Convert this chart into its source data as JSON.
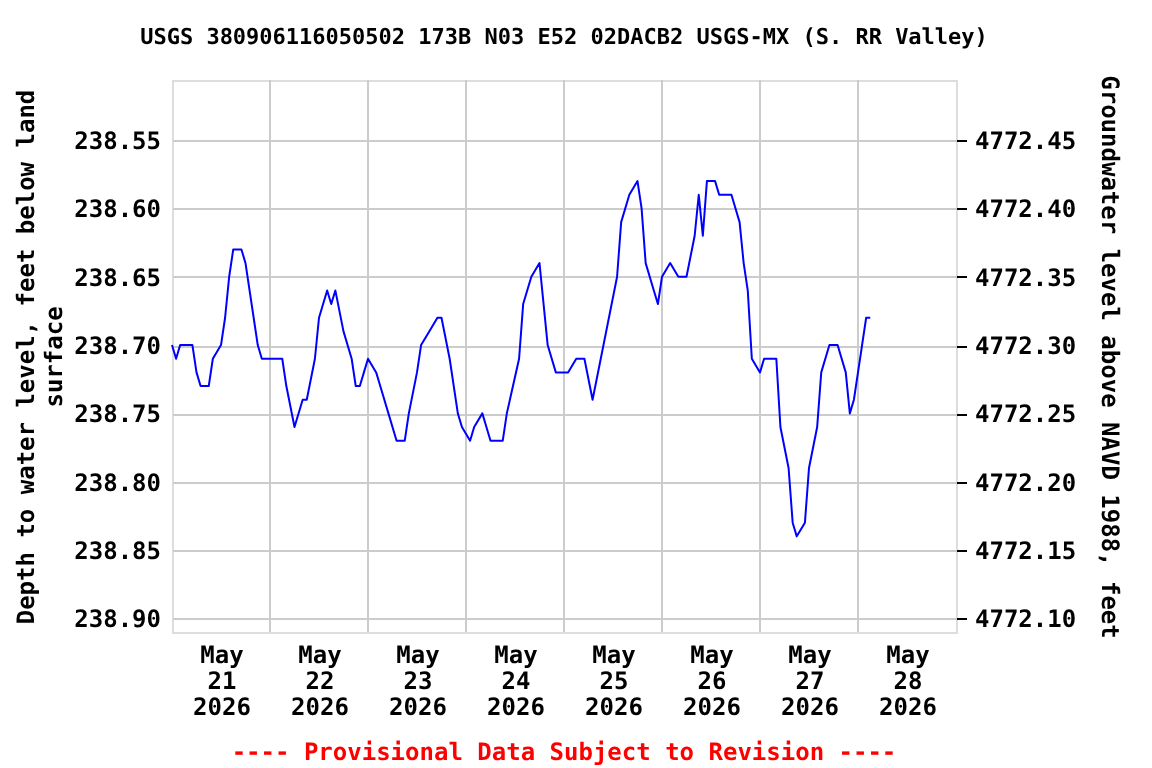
{
  "chart_data": {
    "type": "line",
    "title": "USGS 380906116050502 173B N03 E52 02DACB2    USGS-MX (S. RR Valley)",
    "ylabel": "Depth to water level, feet below land surface",
    "y2label": "Groundwater level above NAVD 1988, feet",
    "annotations": [
      "---- Provisional Data Subject to Revision ----"
    ],
    "x": [
      "2026-05-21T00:00",
      "2026-05-21T01:00",
      "2026-05-21T02:00",
      "2026-05-21T05:00",
      "2026-05-21T06:00",
      "2026-05-21T07:00",
      "2026-05-21T09:00",
      "2026-05-21T10:00",
      "2026-05-21T12:00",
      "2026-05-21T13:00",
      "2026-05-21T14:00",
      "2026-05-21T15:00",
      "2026-05-21T17:00",
      "2026-05-21T18:00",
      "2026-05-21T20:00",
      "2026-05-21T21:00",
      "2026-05-21T22:00",
      "2026-05-22T03:00",
      "2026-05-22T04:00",
      "2026-05-22T06:00",
      "2026-05-22T08:00",
      "2026-05-22T09:00",
      "2026-05-22T11:00",
      "2026-05-22T12:00",
      "2026-05-22T14:00",
      "2026-05-22T15:00",
      "2026-05-22T16:00",
      "2026-05-22T18:00",
      "2026-05-22T20:00",
      "2026-05-22T21:00",
      "2026-05-22T22:00",
      "2026-05-22T23:00",
      "2026-05-23T00:00",
      "2026-05-23T02:00",
      "2026-05-23T03:00",
      "2026-05-23T05:00",
      "2026-05-23T07:00",
      "2026-05-23T09:00",
      "2026-05-23T10:00",
      "2026-05-23T12:00",
      "2026-05-23T13:00",
      "2026-05-23T15:00",
      "2026-05-23T17:00",
      "2026-05-23T18:00",
      "2026-05-23T20:00",
      "2026-05-23T22:00",
      "2026-05-23T23:00",
      "2026-05-24T01:00",
      "2026-05-24T02:00",
      "2026-05-24T04:00",
      "2026-05-24T05:00",
      "2026-05-24T06:00",
      "2026-05-24T09:00",
      "2026-05-24T10:00",
      "2026-05-24T13:00",
      "2026-05-24T14:00",
      "2026-05-24T16:00",
      "2026-05-24T18:00",
      "2026-05-24T19:00",
      "2026-05-24T20:00",
      "2026-05-24T22:00",
      "2026-05-25T01:00",
      "2026-05-25T03:00",
      "2026-05-25T05:00",
      "2026-05-25T07:00",
      "2026-05-25T09:00",
      "2026-05-25T11:00",
      "2026-05-25T13:00",
      "2026-05-25T14:00",
      "2026-05-25T16:00",
      "2026-05-25T18:00",
      "2026-05-25T19:00",
      "2026-05-25T20:00",
      "2026-05-25T22:00",
      "2026-05-25T23:00",
      "2026-05-26T00:00",
      "2026-05-26T02:00",
      "2026-05-26T04:00",
      "2026-05-26T06:00",
      "2026-05-26T08:00",
      "2026-05-26T09:00",
      "2026-05-26T10:00",
      "2026-05-26T11:00",
      "2026-05-26T13:00",
      "2026-05-26T14:00",
      "2026-05-26T17:00",
      "2026-05-26T19:00",
      "2026-05-26T20:00",
      "2026-05-26T21:00",
      "2026-05-26T22:00",
      "2026-05-27T00:00",
      "2026-05-27T01:00",
      "2026-05-27T04:00",
      "2026-05-27T05:00",
      "2026-05-27T07:00",
      "2026-05-27T08:00",
      "2026-05-27T09:00",
      "2026-05-27T11:00",
      "2026-05-27T12:00",
      "2026-05-27T14:00",
      "2026-05-27T15:00",
      "2026-05-27T17:00",
      "2026-05-27T19:00",
      "2026-05-27T21:00",
      "2026-05-27T22:00",
      "2026-05-27T23:00",
      "2026-05-28T01:00",
      "2026-05-28T02:00",
      "2026-05-28T03:00"
    ],
    "series": [
      {
        "color": "#0000ff",
        "values": [
          238.7,
          238.71,
          238.7,
          238.7,
          238.72,
          238.73,
          238.73,
          238.71,
          238.7,
          238.68,
          238.65,
          238.63,
          238.63,
          238.64,
          238.68,
          238.7,
          238.71,
          238.71,
          238.73,
          238.76,
          238.74,
          238.74,
          238.71,
          238.68,
          238.66,
          238.67,
          238.66,
          238.69,
          238.71,
          238.73,
          238.73,
          238.72,
          238.71,
          238.72,
          238.73,
          238.75,
          238.77,
          238.77,
          238.75,
          238.72,
          238.7,
          238.69,
          238.68,
          238.68,
          238.71,
          238.75,
          238.76,
          238.77,
          238.76,
          238.75,
          238.76,
          238.77,
          238.77,
          238.75,
          238.71,
          238.67,
          238.65,
          238.64,
          238.67,
          238.7,
          238.72,
          238.72,
          238.71,
          238.71,
          238.74,
          238.71,
          238.68,
          238.65,
          238.61,
          238.59,
          238.58,
          238.6,
          238.64,
          238.66,
          238.67,
          238.65,
          238.64,
          238.65,
          238.65,
          238.62,
          238.59,
          238.62,
          238.58,
          238.58,
          238.59,
          238.59,
          238.61,
          238.64,
          238.66,
          238.71,
          238.72,
          238.71,
          238.71,
          238.76,
          238.79,
          238.83,
          238.84,
          238.83,
          238.79,
          238.76,
          238.72,
          238.7,
          238.7,
          238.72,
          238.75,
          238.74,
          238.7,
          238.68,
          238.68
        ]
      }
    ],
    "xlim": [
      "2026-05-21T00:00",
      "2026-05-29T00:00"
    ],
    "xticks": [
      {
        "value": "2026-05-21T12:00",
        "label": "May\n21\n2026"
      },
      {
        "value": "2026-05-22T00:00",
        "label": null
      },
      {
        "value": "2026-05-22T12:00",
        "label": "May\n22\n2026"
      },
      {
        "value": "2026-05-23T00:00",
        "label": null
      },
      {
        "value": "2026-05-23T12:00",
        "label": "May\n23\n2026"
      },
      {
        "value": "2026-05-24T00:00",
        "label": null
      },
      {
        "value": "2026-05-24T12:00",
        "label": "May\n24\n2026"
      },
      {
        "value": "2026-05-25T00:00",
        "label": null
      },
      {
        "value": "2026-05-25T12:00",
        "label": "May\n25\n2026"
      },
      {
        "value": "2026-05-26T00:00",
        "label": null
      },
      {
        "value": "2026-05-26T12:00",
        "label": "May\n26\n2026"
      },
      {
        "value": "2026-05-27T00:00",
        "label": null
      },
      {
        "value": "2026-05-27T12:00",
        "label": "May\n27\n2026"
      },
      {
        "value": "2026-05-28T00:00",
        "label": null
      },
      {
        "value": "2026-05-28T12:00",
        "label": "May\n28\n2026"
      }
    ],
    "ylim": [
      238.91,
      238.506
    ],
    "yticks": [
      {
        "value": 238.55,
        "label": "238.55"
      },
      {
        "value": 238.6,
        "label": "238.60"
      },
      {
        "value": 238.65,
        "label": "238.65"
      },
      {
        "value": 238.7,
        "label": "238.70"
      },
      {
        "value": 238.75,
        "label": "238.75"
      },
      {
        "value": 238.8,
        "label": "238.80"
      },
      {
        "value": 238.85,
        "label": "238.85"
      },
      {
        "value": 238.9,
        "label": "238.90"
      }
    ],
    "y2lim": [
      4772.09,
      4772.494
    ],
    "y2ticks": [
      {
        "value": 4772.45,
        "label": "4772.45"
      },
      {
        "value": 4772.4,
        "label": "4772.40"
      },
      {
        "value": 4772.35,
        "label": "4772.35"
      },
      {
        "value": 4772.3,
        "label": "4772.30"
      },
      {
        "value": 4772.25,
        "label": "4772.25"
      },
      {
        "value": 4772.2,
        "label": "4772.20"
      },
      {
        "value": 4772.15,
        "label": "4772.15"
      },
      {
        "value": 4772.1,
        "label": "4772.10"
      }
    ],
    "grid": true
  }
}
